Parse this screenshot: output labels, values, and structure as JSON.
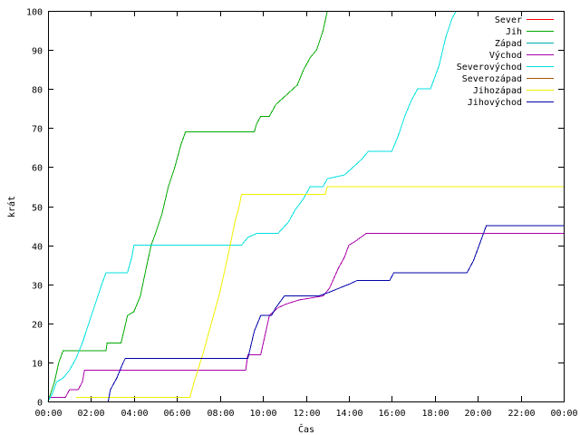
{
  "chart_data": {
    "type": "line",
    "title": "",
    "xlabel": "Čas",
    "ylabel": "krát",
    "xlim": [
      0,
      24
    ],
    "ylim": [
      0,
      100
    ],
    "x_ticks": [
      {
        "v": 0,
        "label": "00:00"
      },
      {
        "v": 2,
        "label": "02:00"
      },
      {
        "v": 4,
        "label": "04:00"
      },
      {
        "v": 6,
        "label": "06:00"
      },
      {
        "v": 8,
        "label": "08:00"
      },
      {
        "v": 10,
        "label": "10:00"
      },
      {
        "v": 12,
        "label": "12:00"
      },
      {
        "v": 14,
        "label": "14:00"
      },
      {
        "v": 16,
        "label": "16:00"
      },
      {
        "v": 18,
        "label": "18:00"
      },
      {
        "v": 20,
        "label": "20:00"
      },
      {
        "v": 22,
        "label": "22:00"
      },
      {
        "v": 24,
        "label": "00:00"
      }
    ],
    "y_ticks": [
      0,
      10,
      20,
      30,
      40,
      50,
      60,
      70,
      80,
      90,
      100
    ],
    "grid": false,
    "legend_position": "top-right",
    "series": [
      {
        "name": "Sever",
        "color": "#ff0000",
        "points": []
      },
      {
        "name": "Jih",
        "color": "#00aa00",
        "points": [
          [
            0.0,
            0
          ],
          [
            0.3,
            5
          ],
          [
            0.5,
            10
          ],
          [
            0.7,
            13
          ],
          [
            2.7,
            13
          ],
          [
            2.75,
            15
          ],
          [
            3.4,
            15
          ],
          [
            3.7,
            22
          ],
          [
            4.0,
            23
          ],
          [
            4.3,
            27
          ],
          [
            4.6,
            35
          ],
          [
            4.8,
            40
          ],
          [
            5.0,
            43
          ],
          [
            5.3,
            48
          ],
          [
            5.6,
            55
          ],
          [
            5.9,
            60
          ],
          [
            6.2,
            66
          ],
          [
            6.4,
            69
          ],
          [
            9.6,
            69
          ],
          [
            9.7,
            71
          ],
          [
            9.9,
            73
          ],
          [
            10.3,
            73
          ],
          [
            10.6,
            76
          ],
          [
            11.0,
            78
          ],
          [
            11.6,
            81
          ],
          [
            11.9,
            85
          ],
          [
            12.2,
            88
          ],
          [
            12.5,
            90
          ],
          [
            12.8,
            95
          ],
          [
            13.0,
            100
          ]
        ]
      },
      {
        "name": "Západ",
        "color": "#00aaaa",
        "points": []
      },
      {
        "name": "Východ",
        "color": "#aa00aa",
        "points": [
          [
            0.0,
            1
          ],
          [
            0.8,
            1
          ],
          [
            1.0,
            3
          ],
          [
            1.4,
            3
          ],
          [
            1.6,
            5
          ],
          [
            1.7,
            8
          ],
          [
            9.2,
            8
          ],
          [
            9.3,
            12
          ],
          [
            9.9,
            12
          ],
          [
            10.1,
            17
          ],
          [
            10.3,
            22
          ],
          [
            10.7,
            24
          ],
          [
            11.1,
            25
          ],
          [
            11.7,
            26
          ],
          [
            12.8,
            27
          ],
          [
            13.1,
            29
          ],
          [
            13.5,
            34
          ],
          [
            13.8,
            37
          ],
          [
            14.0,
            40
          ],
          [
            14.3,
            41
          ],
          [
            14.8,
            43
          ],
          [
            24.0,
            43
          ]
        ]
      },
      {
        "name": "Severovýchod",
        "color": "#00e0e0",
        "points": [
          [
            0.0,
            0
          ],
          [
            0.2,
            2
          ],
          [
            0.4,
            5
          ],
          [
            0.7,
            6
          ],
          [
            1.0,
            8
          ],
          [
            1.3,
            11
          ],
          [
            1.6,
            15
          ],
          [
            1.9,
            20
          ],
          [
            2.2,
            25
          ],
          [
            2.5,
            30
          ],
          [
            2.7,
            33
          ],
          [
            3.7,
            33
          ],
          [
            3.9,
            37
          ],
          [
            4.0,
            40
          ],
          [
            9.0,
            40
          ],
          [
            9.3,
            42
          ],
          [
            9.7,
            43
          ],
          [
            10.7,
            43
          ],
          [
            11.2,
            46
          ],
          [
            11.5,
            49
          ],
          [
            11.9,
            52
          ],
          [
            12.2,
            55
          ],
          [
            12.8,
            55
          ],
          [
            13.0,
            57
          ],
          [
            13.8,
            58
          ],
          [
            14.2,
            60
          ],
          [
            14.6,
            62
          ],
          [
            14.9,
            64
          ],
          [
            16.0,
            64
          ],
          [
            16.3,
            68
          ],
          [
            16.6,
            73
          ],
          [
            16.9,
            77
          ],
          [
            17.2,
            80
          ],
          [
            17.8,
            80
          ],
          [
            18.2,
            86
          ],
          [
            18.5,
            93
          ],
          [
            18.8,
            98
          ],
          [
            19.0,
            100
          ]
        ]
      },
      {
        "name": "Severozápad",
        "color": "#aa5500",
        "points": []
      },
      {
        "name": "Jihozápad",
        "color": "#f0f000",
        "points": [
          [
            1.3,
            1
          ],
          [
            6.6,
            1
          ],
          [
            6.8,
            5
          ],
          [
            7.2,
            12
          ],
          [
            7.6,
            20
          ],
          [
            8.0,
            28
          ],
          [
            8.4,
            38
          ],
          [
            8.7,
            46
          ],
          [
            8.9,
            50
          ],
          [
            9.0,
            53
          ],
          [
            12.9,
            53
          ],
          [
            13.0,
            55
          ],
          [
            24.0,
            55
          ]
        ]
      },
      {
        "name": "Jihovýchod",
        "color": "#0000aa",
        "points": [
          [
            2.8,
            0
          ],
          [
            2.9,
            3
          ],
          [
            3.2,
            6
          ],
          [
            3.5,
            10
          ],
          [
            3.6,
            11
          ],
          [
            9.3,
            11
          ],
          [
            9.6,
            18
          ],
          [
            9.9,
            22
          ],
          [
            10.4,
            22
          ],
          [
            10.6,
            24
          ],
          [
            11.0,
            27
          ],
          [
            12.6,
            27
          ],
          [
            13.1,
            28
          ],
          [
            14.0,
            30
          ],
          [
            14.4,
            31
          ],
          [
            15.9,
            31
          ],
          [
            16.1,
            33
          ],
          [
            19.5,
            33
          ],
          [
            19.8,
            36
          ],
          [
            20.2,
            42
          ],
          [
            20.4,
            45
          ],
          [
            24.0,
            45
          ]
        ]
      }
    ]
  }
}
